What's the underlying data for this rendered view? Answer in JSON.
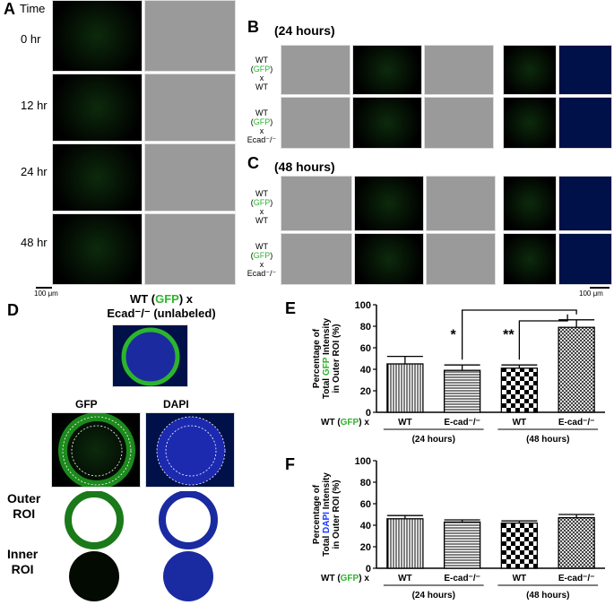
{
  "panelA": {
    "letter": "A",
    "time_header": "Time",
    "times": [
      "0 hr",
      "12 hr",
      "24 hr",
      "48 hr"
    ],
    "scale": "100 μm"
  },
  "panelB": {
    "letter": "B",
    "title": "(24 hours)",
    "rows": [
      {
        "line1": "WT (GFP)",
        "line2": "x",
        "line3": "WT"
      },
      {
        "line1": "WT (GFP)",
        "line2": "x",
        "line3": "Ecad⁻/⁻"
      }
    ]
  },
  "panelC": {
    "letter": "C",
    "title": "(48 hours)",
    "rows": [
      {
        "line1": "WT (GFP)",
        "line2": "x",
        "line3": "WT"
      },
      {
        "line1": "WT (GFP)",
        "line2": "x",
        "line3": "Ecad⁻/⁻"
      }
    ],
    "scale": "100 μm"
  },
  "panelD": {
    "letter": "D",
    "title_line1_pre": "WT (",
    "title_line1_gfp": "GFP",
    "title_line1_post": ") x",
    "title_line2": "Ecad⁻/⁻ (unlabeled)",
    "gfp_label": "GFP",
    "dapi_label": "DAPI",
    "outer_label_1": "Outer",
    "outer_label_2": "ROI",
    "inner_label_1": "Inner",
    "inner_label_2": "ROI"
  },
  "colors": {
    "gfp": "#2cb52c",
    "dapi": "#1e3cff"
  },
  "chart_data": [
    {
      "panel": "E",
      "type": "bar",
      "ylabel_lines": [
        "Percentage of",
        "Total GFP Intensity",
        "in Outer ROI (%)"
      ],
      "ylabel_colored_word": "GFP",
      "ylim": [
        0,
        100
      ],
      "yticks": [
        0,
        20,
        40,
        60,
        80,
        100
      ],
      "categories": [
        "WT",
        "E-cad⁻/⁻",
        "WT",
        "E-cad⁻/⁻"
      ],
      "values": [
        45,
        39,
        41,
        79
      ],
      "errors": [
        7,
        5,
        3,
        7
      ],
      "patterns": [
        "vlines",
        "hlines",
        "checker",
        "crosshatch"
      ],
      "row_label": "WT (GFP) x",
      "groups": [
        "(24 hours)",
        "(48 hours)"
      ],
      "significance": [
        "*",
        "**"
      ]
    },
    {
      "panel": "F",
      "type": "bar",
      "ylabel_lines": [
        "Percentage of",
        "Total DAPI Intensity",
        "in Outer ROI (%)"
      ],
      "ylabel_colored_word": "DAPI",
      "ylim": [
        0,
        100
      ],
      "yticks": [
        0,
        20,
        40,
        60,
        80,
        100
      ],
      "categories": [
        "WT",
        "E-cad⁻/⁻",
        "WT",
        "E-cad⁻/⁻"
      ],
      "values": [
        46,
        43,
        42,
        47
      ],
      "errors": [
        3,
        2,
        2,
        3
      ],
      "patterns": [
        "vlines",
        "hlines",
        "checker",
        "crosshatch"
      ],
      "row_label": "WT (GFP) x",
      "groups": [
        "(24 hours)",
        "(48 hours)"
      ]
    }
  ],
  "chart_letters": [
    "E",
    "F"
  ]
}
